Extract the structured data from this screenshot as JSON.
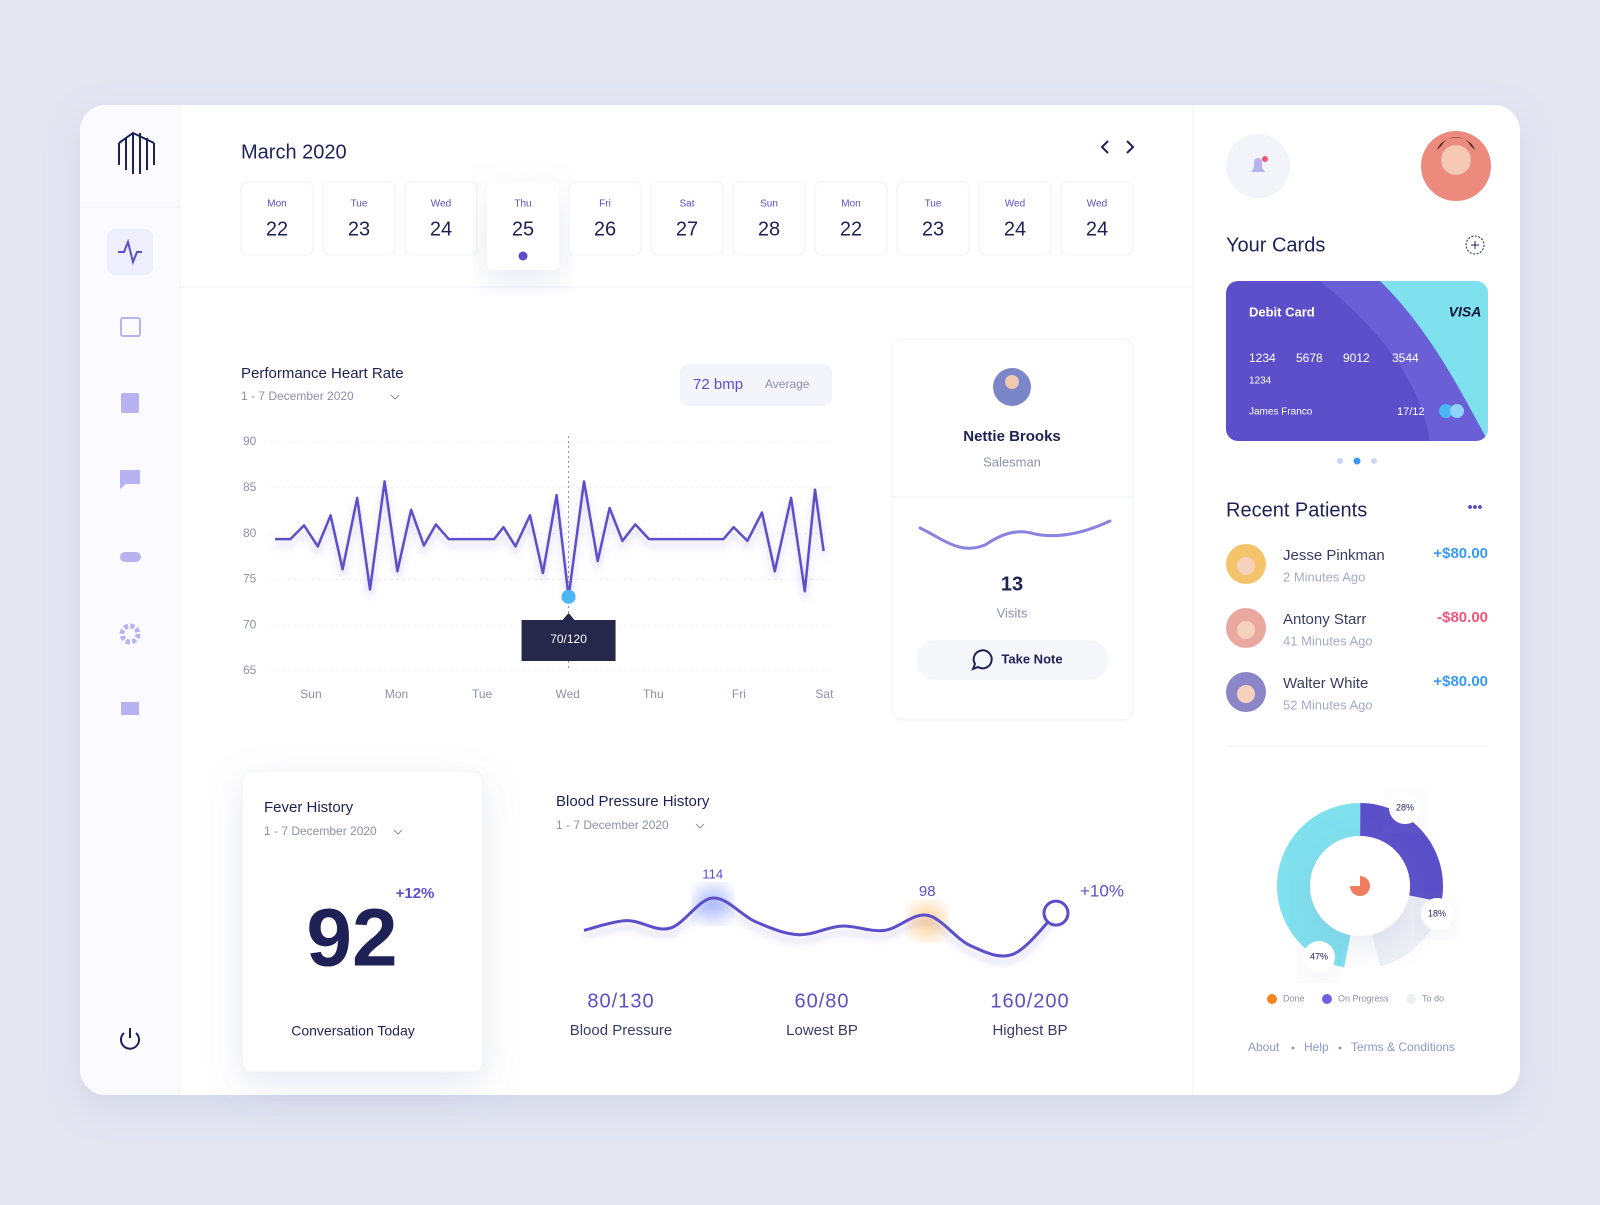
{
  "calendar": {
    "title": "March 2020",
    "days": [
      {
        "weekday": "Mon",
        "day": 22
      },
      {
        "weekday": "Tue",
        "day": 23
      },
      {
        "weekday": "Wed",
        "day": 24
      },
      {
        "weekday": "Thu",
        "day": 25,
        "selected": true
      },
      {
        "weekday": "Fri",
        "day": 26
      },
      {
        "weekday": "Sat",
        "day": 27
      },
      {
        "weekday": "Sun",
        "day": 28
      },
      {
        "weekday": "Mon",
        "day": 22
      },
      {
        "weekday": "Tue",
        "day": 23
      },
      {
        "weekday": "Wed",
        "day": 24
      },
      {
        "weekday": "Wed",
        "day": 24
      }
    ]
  },
  "chart_data": [
    {
      "type": "line",
      "title": "Performance Heart Rate",
      "subtitle": "1 - 7 December 2020",
      "color": "#5b4fc9",
      "average": {
        "value": "72 bmp",
        "label": "Average"
      },
      "x": [
        -0.42,
        -0.24,
        -0.08,
        0.08,
        0.23,
        0.37,
        0.54,
        0.69,
        0.86,
        1.01,
        1.17,
        1.32,
        1.46,
        1.61,
        2.14,
        2.25,
        2.39,
        2.56,
        2.71,
        2.87,
        3.01,
        3.19,
        3.35,
        3.49,
        3.64,
        3.79,
        3.95,
        4.82,
        4.94,
        5.1,
        5.27,
        5.42,
        5.61,
        5.77,
        5.89,
        5.99
      ],
      "values": [
        79.4,
        79.4,
        80.9,
        78.6,
        82,
        76.1,
        83.9,
        73.9,
        85.7,
        75.9,
        82.6,
        78.7,
        81,
        79.4,
        79.4,
        80.7,
        78.6,
        82,
        75.7,
        84.2,
        73.1,
        85.7,
        77,
        82.8,
        79.2,
        81,
        79.4,
        79.4,
        80.7,
        79.2,
        82.3,
        75.9,
        83.9,
        73.7,
        84.8,
        78.1
      ],
      "xlim": [
        -0.8,
        6.1
      ],
      "xticks": [
        {
          "value": 0,
          "label": "Sun"
        },
        {
          "value": 1,
          "label": "Mon"
        },
        {
          "value": 2,
          "label": "Tue"
        },
        {
          "value": 3,
          "label": "Wed"
        },
        {
          "value": 4,
          "label": "Thu"
        },
        {
          "value": 5,
          "label": "Fri"
        },
        {
          "value": 6,
          "label": "Sat"
        }
      ],
      "ylim": [
        65,
        90
      ],
      "yticks": [
        90,
        85,
        80,
        75,
        70,
        65
      ],
      "grid": true,
      "annotations": [
        {
          "text": "70/120",
          "x": 3.01,
          "y": 73.1
        }
      ]
    },
    {
      "type": "line",
      "title": "Blood Pressure History",
      "subtitle": "1 - 7 December 2020",
      "color": "#5b4fc9",
      "values": [
        84,
        93,
        86,
        114,
        92,
        80,
        88,
        84,
        98,
        70,
        62,
        100
      ],
      "labeled": [
        3,
        8
      ],
      "annotations": [
        {
          "text": "+10%"
        }
      ]
    },
    {
      "type": "pie",
      "values": [
        47,
        28,
        18
      ],
      "value_labels": [
        "47%",
        "28%",
        "18%"
      ],
      "colors": [
        "#7fe0ee",
        "#5b4fc9",
        "#eef0f6"
      ],
      "legend": [
        {
          "name": "Done",
          "color": "#f5841f"
        },
        {
          "name": "On Progress",
          "color": "#6c63e0"
        },
        {
          "name": "To do",
          "color": "#eef0f6"
        }
      ]
    }
  ],
  "profile": {
    "name": "Nettie Brooks",
    "role": "Salesman",
    "visits": 13,
    "visits_label": "Visits",
    "button": "Take Note"
  },
  "fever": {
    "title": "Fever History",
    "period": "1 - 7 December 2020",
    "change": "+12%",
    "value": 92,
    "caption": "Conversation Today"
  },
  "blood_pressure_stats": [
    {
      "value": "80/130",
      "label": "Blood Pressure"
    },
    {
      "value": "60/80",
      "label": "Lowest BP"
    },
    {
      "value": "160/200",
      "label": "Highest BP"
    }
  ],
  "cards": {
    "title": "Your Cards",
    "card": {
      "type": "Debit Card",
      "brand": "VISA",
      "number": [
        "1234",
        "5678",
        "9012",
        "3544"
      ],
      "number_extra": "1234",
      "holder": "James Franco",
      "expiry": "17/12"
    }
  },
  "recent_patients": {
    "title": "Recent Patients",
    "items": [
      {
        "name": "Jesse Pinkman",
        "time": "2 Minutes Ago",
        "amount": "+$80.00"
      },
      {
        "name": "Antony Starr",
        "time": "41 Minutes Ago",
        "amount": "-$80.00"
      },
      {
        "name": "Walter White",
        "time": "52 Minutes Ago",
        "amount": "+$80.00"
      }
    ]
  },
  "footer": [
    "About",
    "Help",
    "Terms & Conditions"
  ]
}
